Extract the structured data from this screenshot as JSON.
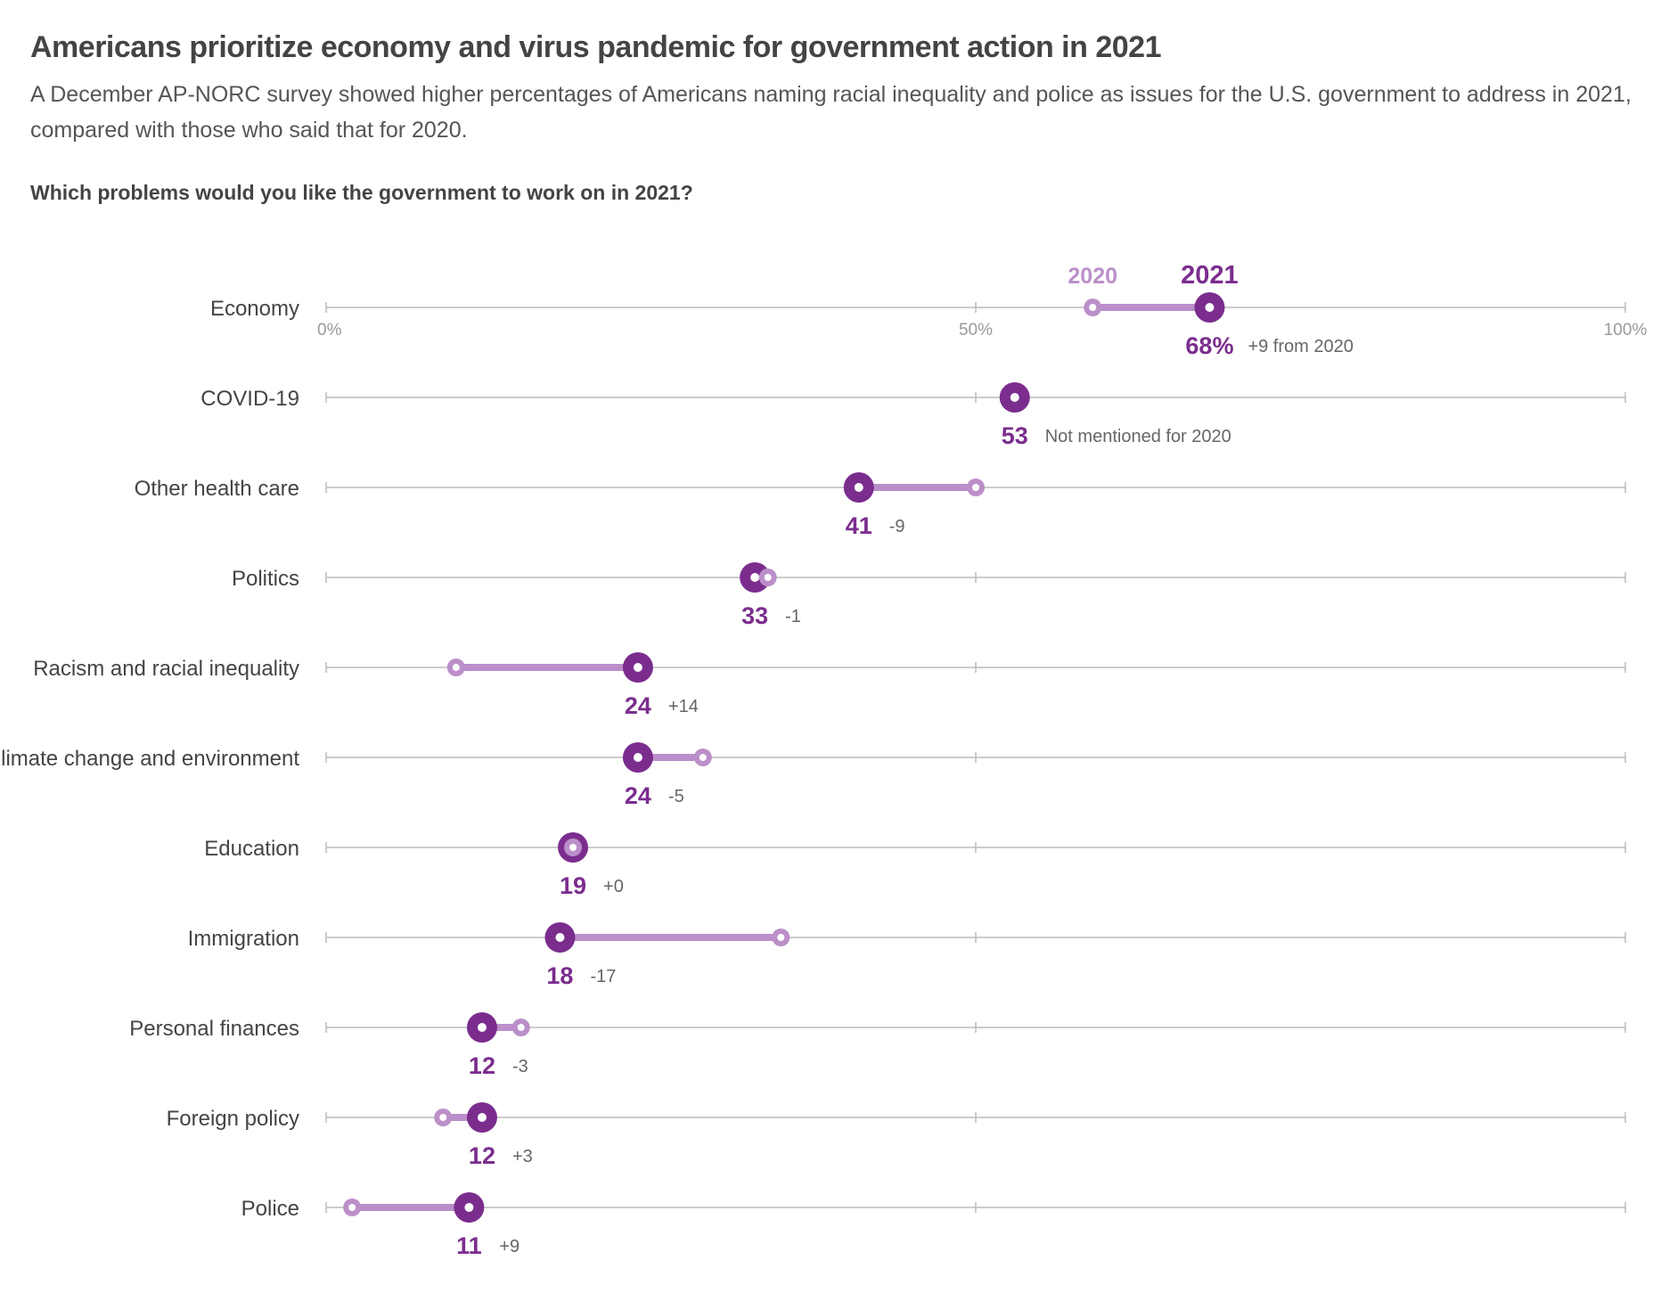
{
  "title": "Americans prioritize economy and virus pandemic for government action in 2021",
  "subtitle": "A December AP-NORC survey showed higher percentages of Americans naming racial inequality and police as issues for the U.S. government to address in 2021, compared with those who said that for 2020.",
  "question": "Which problems would you like the government to work on in 2021?",
  "colors": {
    "y2021": "#7b2d8e",
    "y2020": "#bb8fc9",
    "axis": "#bbbbbb",
    "label": "#444444",
    "note": "#666666"
  },
  "chart_data": {
    "type": "dumbbell",
    "xlim": [
      0,
      100
    ],
    "ticks": [
      {
        "value": 0,
        "label": "0%"
      },
      {
        "value": 50,
        "label": "50%"
      },
      {
        "value": 100,
        "label": "100%"
      }
    ],
    "series_names": {
      "y2020": "2020",
      "y2021": "2021"
    },
    "rows": [
      {
        "category": "Economy",
        "v2021": 68,
        "v2020": 59,
        "value_label": "68%",
        "change_label": "+9 from 2020"
      },
      {
        "category": "COVID-19",
        "v2021": 53,
        "v2020": null,
        "value_label": "53",
        "change_label": "Not mentioned for 2020"
      },
      {
        "category": "Other health care",
        "v2021": 41,
        "v2020": 50,
        "value_label": "41",
        "change_label": "-9"
      },
      {
        "category": "Politics",
        "v2021": 33,
        "v2020": 34,
        "value_label": "33",
        "change_label": "-1"
      },
      {
        "category": "Racism and racial inequality",
        "v2021": 24,
        "v2020": 10,
        "value_label": "24",
        "change_label": "+14"
      },
      {
        "category": "Climate change and environment",
        "v2021": 24,
        "v2020": 29,
        "value_label": "24",
        "change_label": "-5"
      },
      {
        "category": "Education",
        "v2021": 19,
        "v2020": 19,
        "value_label": "19",
        "change_label": "+0"
      },
      {
        "category": "Immigration",
        "v2021": 18,
        "v2020": 35,
        "value_label": "18",
        "change_label": "-17"
      },
      {
        "category": "Personal finances",
        "v2021": 12,
        "v2020": 15,
        "value_label": "12",
        "change_label": "-3"
      },
      {
        "category": "Foreign policy",
        "v2021": 12,
        "v2020": 9,
        "value_label": "12",
        "change_label": "+3"
      },
      {
        "category": "Police",
        "v2021": 11,
        "v2020": 2,
        "value_label": "11",
        "change_label": "+9"
      }
    ]
  }
}
